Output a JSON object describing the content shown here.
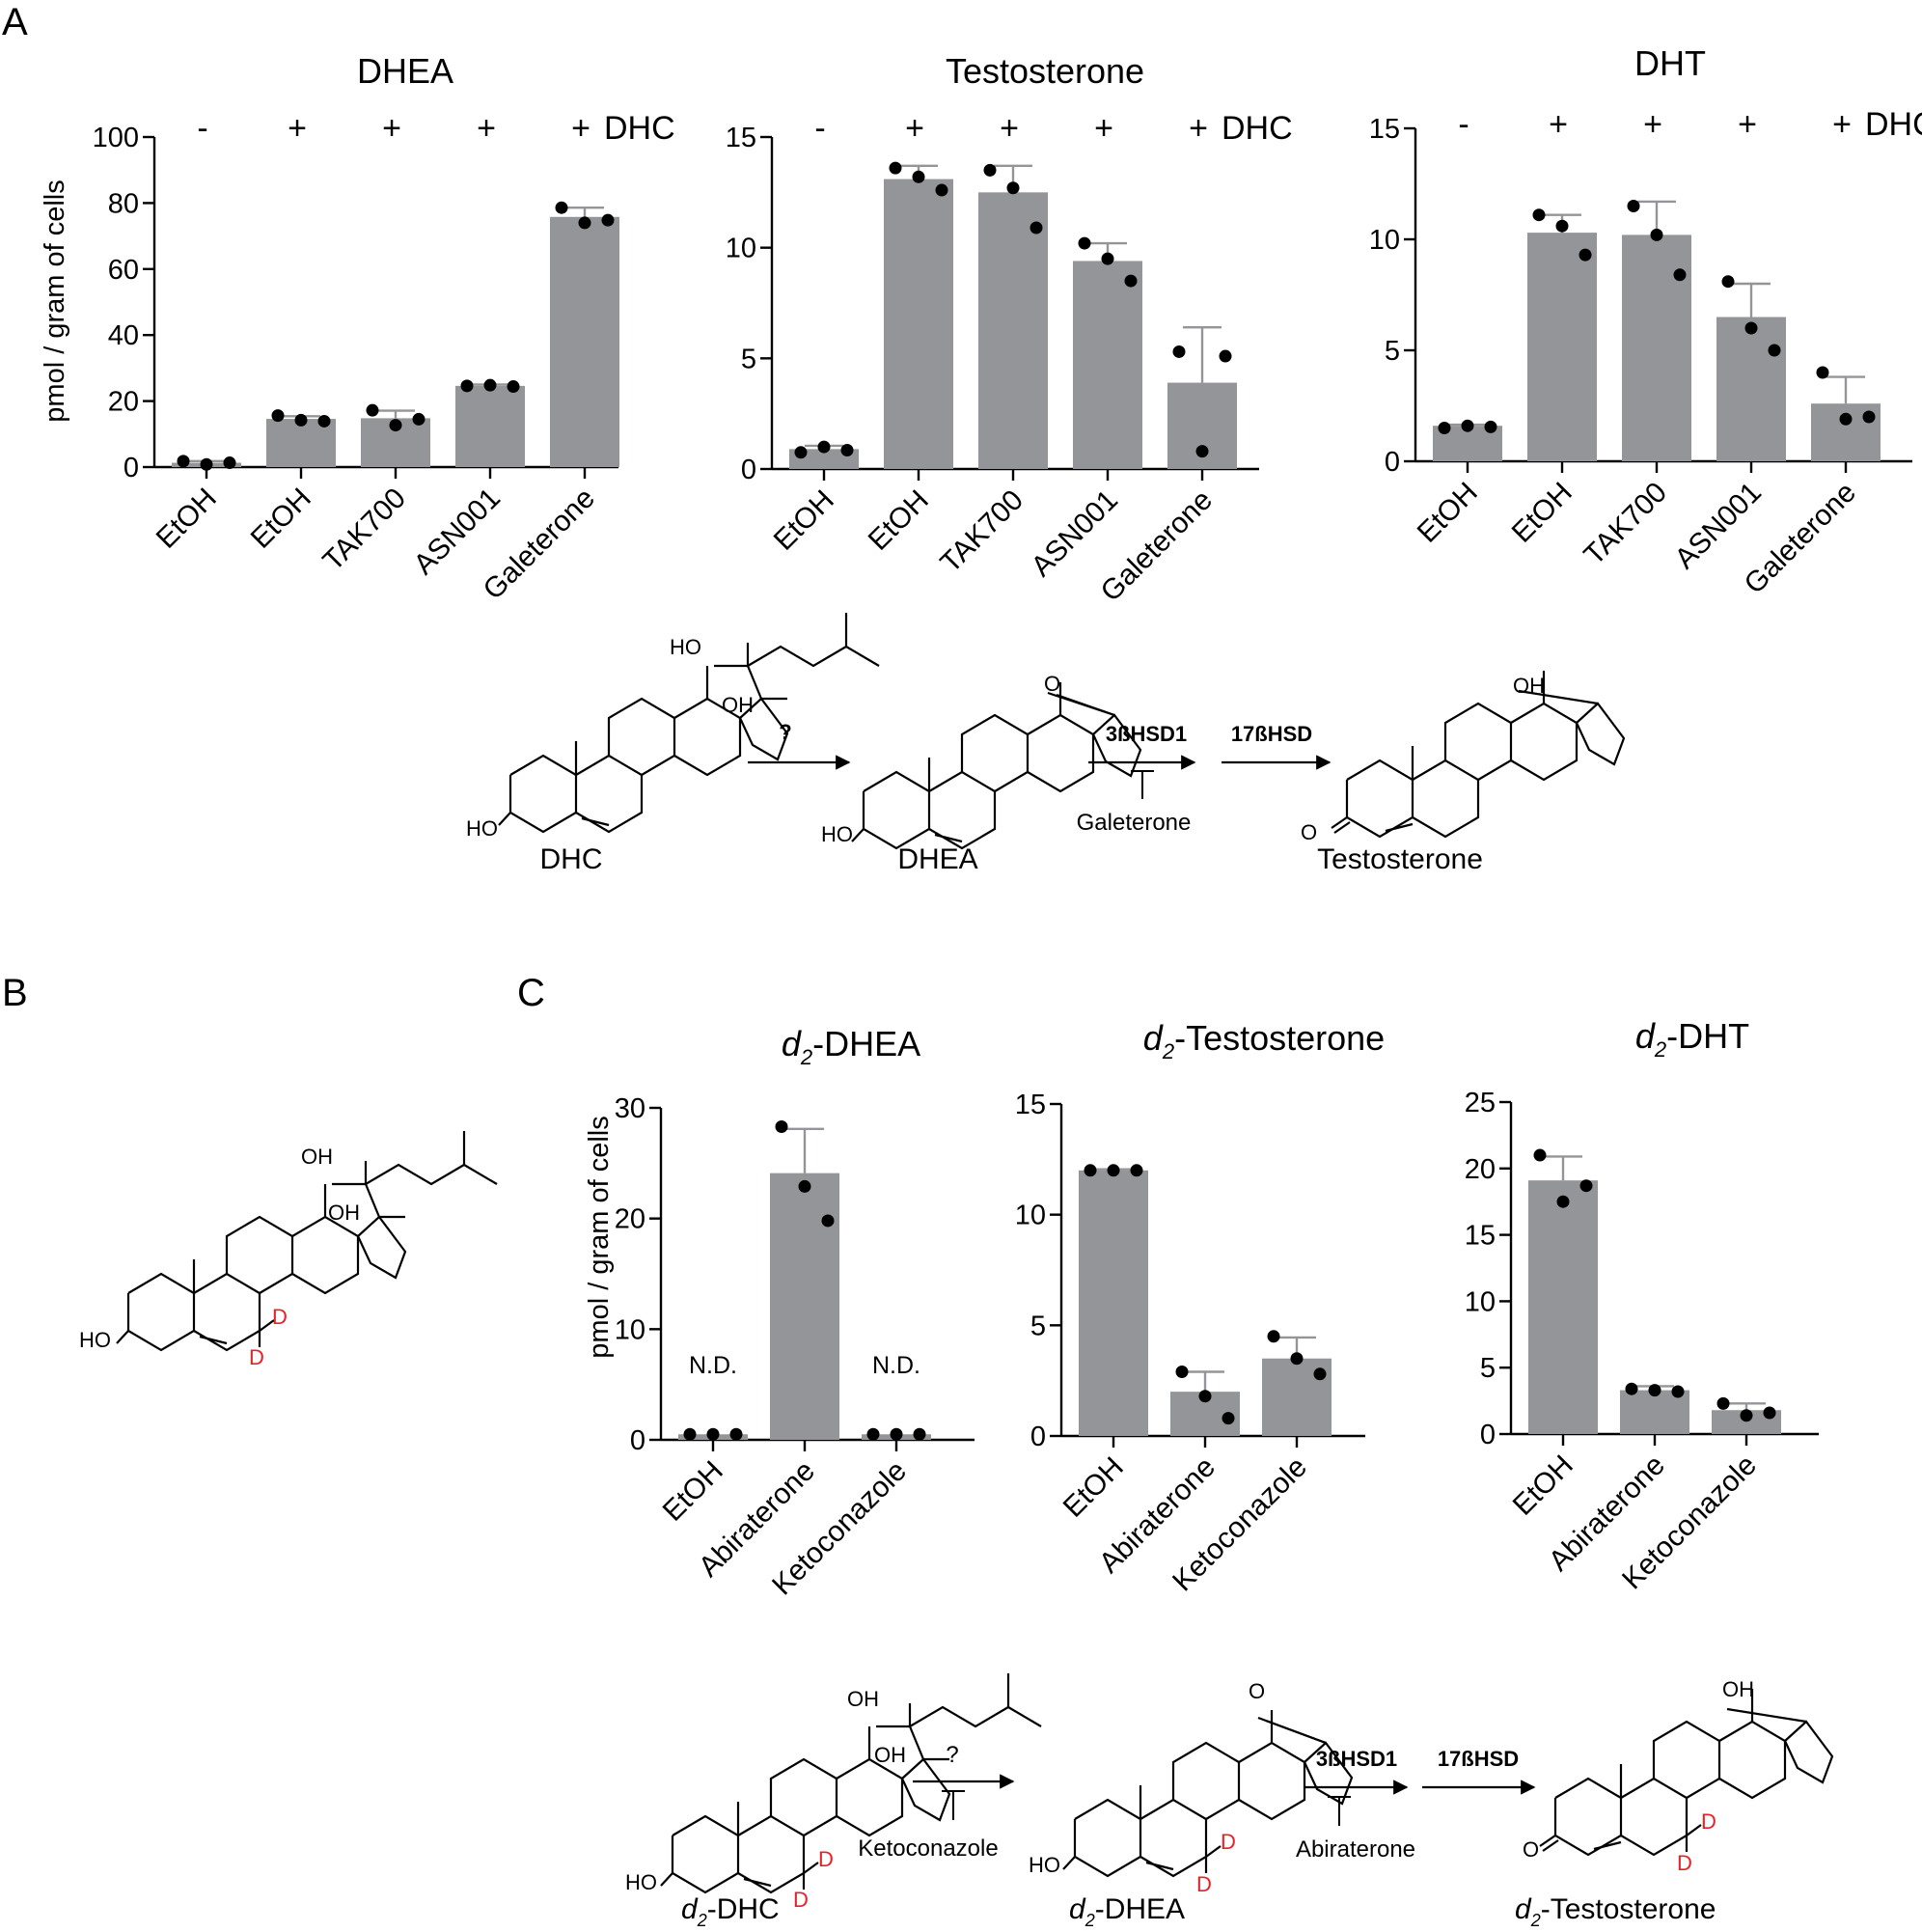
{
  "panels": {
    "a": "A",
    "b": "B",
    "c": "C"
  },
  "colors": {
    "bar": "#939598",
    "err": "#939598",
    "dot": "#000000",
    "faint_dot": "#bcbec0",
    "deuterium": "#e8202a"
  },
  "ylabel": "pmol / gram of cells",
  "chart_data": [
    {
      "id": "a1",
      "type": "bar",
      "title": "DHEA",
      "ylim": [
        0,
        100
      ],
      "yticks": [
        0,
        20,
        40,
        60,
        80,
        100
      ],
      "categories": [
        "EtOH",
        "EtOH",
        "TAK700",
        "ASN001",
        "Galeterone"
      ],
      "dhc": [
        "-",
        "+",
        "+",
        "+",
        "+"
      ],
      "dhc_label": "DHC",
      "values": [
        1.3,
        14.6,
        14.8,
        24.6,
        75.8
      ],
      "errors": [
        0.5,
        0.8,
        2.3,
        0.4,
        2.8
      ],
      "points": [
        [
          1.8,
          0.8,
          1.3
        ],
        [
          15.6,
          14.2,
          13.9
        ],
        [
          17.2,
          12.7,
          14.5
        ],
        [
          24.6,
          24.8,
          24.4
        ],
        [
          78.6,
          74.0,
          74.8
        ]
      ]
    },
    {
      "id": "a2",
      "type": "bar",
      "title": "Testosterone",
      "ylim": [
        0,
        15
      ],
      "yticks": [
        0,
        5,
        10,
        15
      ],
      "categories": [
        "EtOH",
        "EtOH",
        "TAK700",
        "ASN001",
        "Galeterone"
      ],
      "dhc": [
        "-",
        "+",
        "+",
        "+",
        "+"
      ],
      "dhc_label": "DHC",
      "values": [
        0.9,
        13.1,
        12.5,
        9.4,
        3.9
      ],
      "errors": [
        0.15,
        0.6,
        1.2,
        0.8,
        2.5
      ],
      "points": [
        [
          0.75,
          1.0,
          0.85
        ],
        [
          13.6,
          13.2,
          12.6
        ],
        [
          13.5,
          12.7,
          10.9
        ],
        [
          10.2,
          9.5,
          8.5
        ],
        [
          5.3,
          0.8,
          5.1
        ]
      ]
    },
    {
      "id": "a3",
      "type": "bar",
      "title": "DHT",
      "ylim": [
        0,
        15
      ],
      "yticks": [
        0,
        5,
        10,
        15
      ],
      "categories": [
        "EtOH",
        "EtOH",
        "TAK700",
        "ASN001",
        "Galeterone"
      ],
      "dhc": [
        "-",
        "+",
        "+",
        "+",
        "+"
      ],
      "dhc_label": "DHC",
      "values": [
        1.6,
        10.3,
        10.2,
        6.5,
        2.6
      ],
      "errors": [
        0.05,
        0.8,
        1.5,
        1.5,
        1.2
      ],
      "points": [
        [
          1.5,
          1.6,
          1.55
        ],
        [
          11.1,
          10.6,
          9.3
        ],
        [
          11.5,
          10.2,
          8.4
        ],
        [
          8.1,
          6.0,
          5.0
        ],
        [
          4.0,
          1.9,
          2.0
        ]
      ]
    },
    {
      "id": "c1",
      "type": "bar",
      "title_sub": "2",
      "title_rest": "-DHEA",
      "ylim": [
        0,
        30
      ],
      "yticks": [
        0,
        10,
        20,
        30
      ],
      "categories": [
        "EtOH",
        "Abiraterone",
        "Ketoconazole"
      ],
      "values": [
        0.5,
        24.1,
        0.5
      ],
      "errors": [
        0,
        4.0,
        0
      ],
      "points": [
        [
          0.5,
          0.5,
          0.5
        ],
        [
          28.3,
          22.9,
          19.8
        ],
        [
          0.5,
          0.5,
          0.5
        ]
      ],
      "annotations": [
        "N.D.",
        "",
        "N.D."
      ]
    },
    {
      "id": "c2",
      "type": "bar",
      "title_sub": "2",
      "title_rest": "-Testosterone",
      "ylim": [
        0,
        15
      ],
      "yticks": [
        0,
        5,
        10,
        15
      ],
      "categories": [
        "EtOH",
        "Abiraterone",
        "Ketoconazole"
      ],
      "values": [
        12.0,
        2.0,
        3.5
      ],
      "errors": [
        0.05,
        0.9,
        0.95
      ],
      "points": [
        [
          12.0,
          12.0,
          12.0
        ],
        [
          2.9,
          1.8,
          0.8
        ],
        [
          4.5,
          3.5,
          2.8
        ]
      ]
    },
    {
      "id": "c3",
      "type": "bar",
      "title_sub": "2",
      "title_rest": "-DHT",
      "ylim": [
        0,
        25
      ],
      "yticks": [
        0,
        5,
        10,
        15,
        20,
        25
      ],
      "categories": [
        "EtOH",
        "Abiraterone",
        "Ketoconazole"
      ],
      "values": [
        19.1,
        3.3,
        1.8
      ],
      "errors": [
        1.8,
        0.3,
        0.5
      ],
      "points": [
        [
          21.0,
          17.5,
          18.7
        ],
        [
          3.4,
          3.3,
          3.2
        ],
        [
          2.3,
          1.4,
          1.6
        ]
      ]
    }
  ],
  "scheme_a": {
    "compounds": {
      "dhc": "DHC",
      "dhea": "DHEA",
      "testosterone": "Testosterone"
    },
    "step1": "?",
    "enzyme1": "3ßHSD1",
    "enzyme2": "17ßHSD",
    "inhibitor": "Galeterone"
  },
  "scheme_c": {
    "compounds": {
      "dhc": "-DHC",
      "dhea": "-DHEA",
      "testosterone": "-Testosterone"
    },
    "prefix_d": "d",
    "prefix_sub": "2",
    "step1": "?",
    "inhibitor1": "Ketoconazole",
    "enzyme1": "3ßHSD1",
    "enzyme2": "17ßHSD",
    "inhibitor2": "Abiraterone"
  },
  "chem": {
    "ho": "HO",
    "oh": "OH",
    "o": "O",
    "d": "D"
  }
}
